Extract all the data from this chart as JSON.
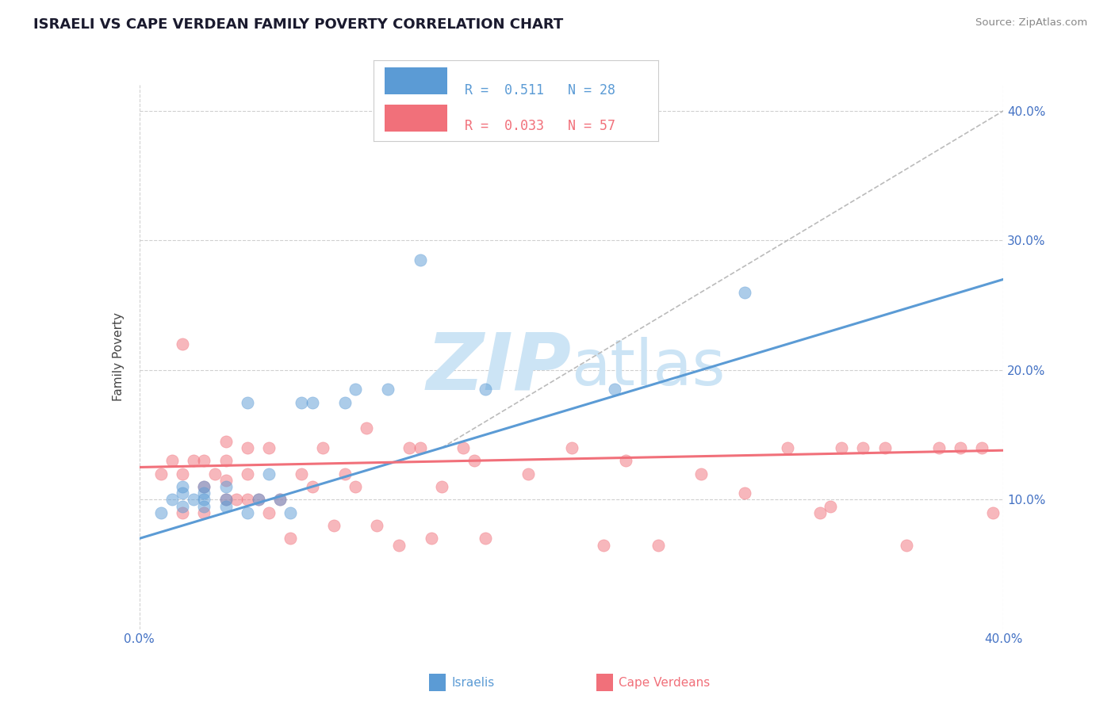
{
  "title": "ISRAELI VS CAPE VERDEAN FAMILY POVERTY CORRELATION CHART",
  "source": "Source: ZipAtlas.com",
  "ylabel": "Family Poverty",
  "xlim": [
    0.0,
    0.4
  ],
  "ylim": [
    0.0,
    0.42
  ],
  "yticks": [
    0.1,
    0.2,
    0.3,
    0.4
  ],
  "ytick_labels": [
    "10.0%",
    "20.0%",
    "30.0%",
    "40.0%"
  ],
  "israeli_color": "#5b9bd5",
  "cape_verdean_color": "#f1707a",
  "israeli_R": "0.511",
  "israeli_N": "28",
  "cape_verdean_R": "0.033",
  "cape_verdean_N": "57",
  "isr_line_x0": 0.0,
  "isr_line_y0": 0.07,
  "isr_line_x1": 0.4,
  "isr_line_y1": 0.27,
  "cv_line_x0": 0.0,
  "cv_line_y0": 0.125,
  "cv_line_x1": 0.4,
  "cv_line_y1": 0.138,
  "ref_line_x0": 0.14,
  "ref_line_y0": 0.14,
  "ref_line_x1": 0.4,
  "ref_line_y1": 0.4,
  "israeli_scatter_x": [
    0.01,
    0.015,
    0.02,
    0.02,
    0.02,
    0.025,
    0.03,
    0.03,
    0.03,
    0.03,
    0.04,
    0.04,
    0.04,
    0.05,
    0.05,
    0.055,
    0.06,
    0.065,
    0.07,
    0.075,
    0.08,
    0.095,
    0.1,
    0.115,
    0.13,
    0.16,
    0.22,
    0.28
  ],
  "israeli_scatter_y": [
    0.09,
    0.1,
    0.095,
    0.105,
    0.11,
    0.1,
    0.095,
    0.1,
    0.105,
    0.11,
    0.095,
    0.1,
    0.11,
    0.09,
    0.175,
    0.1,
    0.12,
    0.1,
    0.09,
    0.175,
    0.175,
    0.175,
    0.185,
    0.185,
    0.285,
    0.185,
    0.185,
    0.26
  ],
  "cape_verdean_scatter_x": [
    0.01,
    0.015,
    0.02,
    0.02,
    0.02,
    0.025,
    0.03,
    0.03,
    0.03,
    0.035,
    0.04,
    0.04,
    0.04,
    0.04,
    0.045,
    0.05,
    0.05,
    0.05,
    0.055,
    0.06,
    0.06,
    0.065,
    0.07,
    0.075,
    0.08,
    0.085,
    0.09,
    0.095,
    0.1,
    0.105,
    0.11,
    0.12,
    0.125,
    0.13,
    0.135,
    0.14,
    0.15,
    0.155,
    0.16,
    0.18,
    0.2,
    0.215,
    0.225,
    0.24,
    0.26,
    0.28,
    0.3,
    0.315,
    0.325,
    0.335,
    0.345,
    0.355,
    0.37,
    0.38,
    0.39,
    0.32,
    0.395
  ],
  "cape_verdean_scatter_y": [
    0.12,
    0.13,
    0.09,
    0.12,
    0.22,
    0.13,
    0.09,
    0.11,
    0.13,
    0.12,
    0.1,
    0.115,
    0.13,
    0.145,
    0.1,
    0.1,
    0.12,
    0.14,
    0.1,
    0.09,
    0.14,
    0.1,
    0.07,
    0.12,
    0.11,
    0.14,
    0.08,
    0.12,
    0.11,
    0.155,
    0.08,
    0.065,
    0.14,
    0.14,
    0.07,
    0.11,
    0.14,
    0.13,
    0.07,
    0.12,
    0.14,
    0.065,
    0.13,
    0.065,
    0.12,
    0.105,
    0.14,
    0.09,
    0.14,
    0.14,
    0.14,
    0.065,
    0.14,
    0.14,
    0.14,
    0.095,
    0.09
  ],
  "watermark_zip": "ZIP",
  "watermark_atlas": "atlas",
  "watermark_color": "#cce4f5",
  "background_color": "#ffffff",
  "grid_color": "#d0d0d0",
  "title_color": "#1a1a2e",
  "axis_label_color": "#4472c4",
  "source_color": "#888888"
}
